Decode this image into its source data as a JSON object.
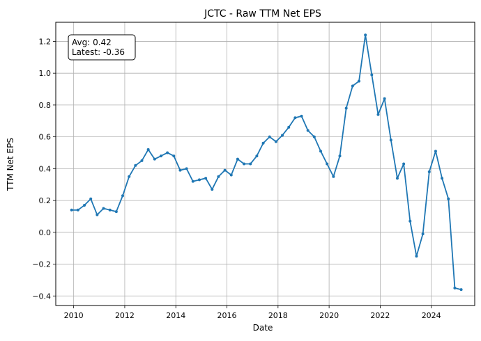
{
  "chart_data": {
    "type": "line",
    "title": "JCTC - Raw TTM Net EPS",
    "xlabel": "Date",
    "ylabel": "TTM Net EPS",
    "xlim": [
      2009.3,
      2025.7
    ],
    "ylim": [
      -0.46,
      1.32
    ],
    "x_ticks": [
      2010,
      2012,
      2014,
      2016,
      2018,
      2020,
      2022,
      2024
    ],
    "x_tick_labels": [
      "2010",
      "2012",
      "2014",
      "2016",
      "2018",
      "2020",
      "2022",
      "2024"
    ],
    "y_ticks": [
      -0.4,
      -0.2,
      0.0,
      0.2,
      0.4,
      0.6,
      0.8,
      1.0,
      1.2
    ],
    "y_tick_labels": [
      "−0.4",
      "−0.2",
      "0.0",
      "0.2",
      "0.4",
      "0.6",
      "0.8",
      "1.0",
      "1.2"
    ],
    "grid": true,
    "line_color": "#1f77b4",
    "annotation": {
      "line1": "Avg: 0.42",
      "line2": "Latest: -0.36",
      "position": "top-left"
    },
    "series": [
      {
        "x": [
          2009.92,
          2010.17,
          2010.42,
          2010.67,
          2010.92,
          2011.17,
          2011.42,
          2011.67,
          2011.92,
          2012.17,
          2012.42,
          2012.67,
          2012.92,
          2013.17,
          2013.42,
          2013.67,
          2013.92,
          2014.17,
          2014.42,
          2014.67,
          2014.92,
          2015.17,
          2015.42,
          2015.67,
          2015.92,
          2016.17,
          2016.42,
          2016.67,
          2016.92,
          2017.17,
          2017.42,
          2017.67,
          2017.92,
          2018.17,
          2018.42,
          2018.67,
          2018.92,
          2019.17,
          2019.42,
          2019.67,
          2019.92,
          2020.17,
          2020.42,
          2020.67,
          2020.92,
          2021.17,
          2021.42,
          2021.67,
          2021.92,
          2022.17,
          2022.42,
          2022.67,
          2022.92,
          2023.17,
          2023.42,
          2023.67,
          2023.92,
          2024.17,
          2024.42,
          2024.67,
          2024.92,
          2025.17
        ],
        "y": [
          0.14,
          0.14,
          0.17,
          0.21,
          0.11,
          0.15,
          0.14,
          0.13,
          0.23,
          0.35,
          0.42,
          0.45,
          0.52,
          0.46,
          0.48,
          0.5,
          0.48,
          0.39,
          0.4,
          0.32,
          0.33,
          0.34,
          0.27,
          0.35,
          0.39,
          0.36,
          0.46,
          0.43,
          0.43,
          0.48,
          0.56,
          0.6,
          0.57,
          0.61,
          0.66,
          0.72,
          0.73,
          0.64,
          0.6,
          0.51,
          0.43,
          0.35,
          0.48,
          0.78,
          0.92,
          0.95,
          1.24,
          0.99,
          0.74,
          0.84,
          0.58,
          0.34,
          0.43,
          0.07,
          -0.15,
          -0.01,
          0.38,
          0.51,
          0.34,
          0.21,
          -0.35,
          -0.36
        ]
      }
    ]
  }
}
